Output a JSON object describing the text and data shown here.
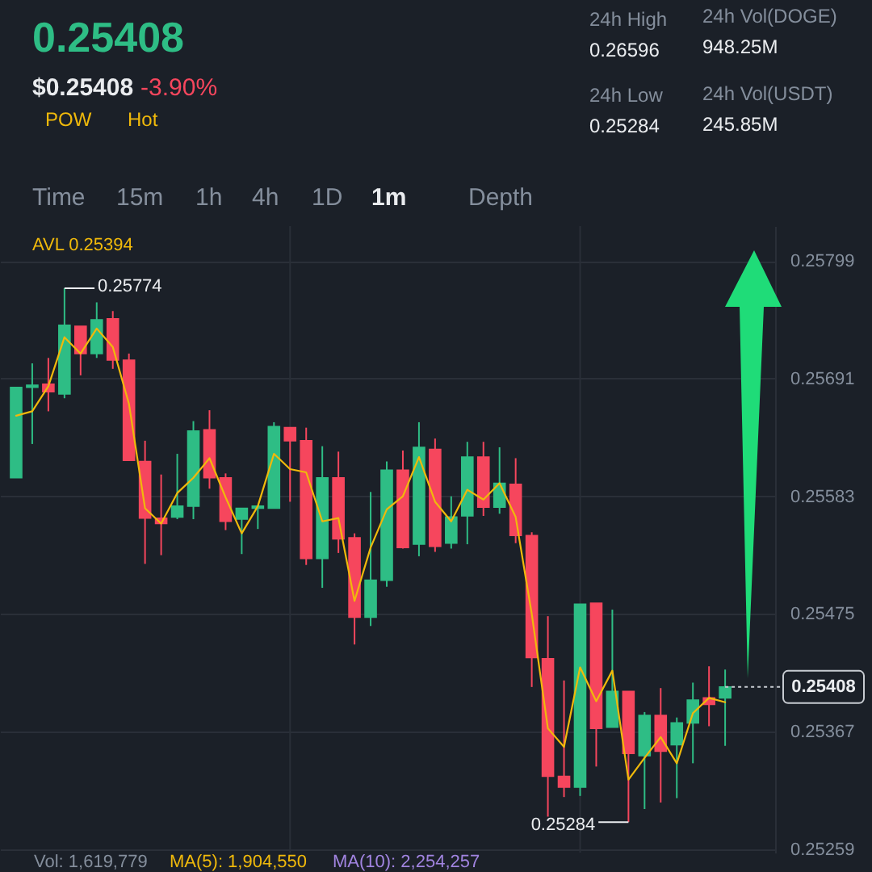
{
  "chart_data": {
    "type": "candlestick",
    "title": "0.25408",
    "categories": [
      null,
      null,
      null,
      null,
      null,
      null,
      null,
      null,
      null,
      null,
      null,
      null,
      null,
      null,
      null,
      null,
      null,
      null,
      null,
      null,
      null,
      null,
      null,
      null,
      null,
      null,
      null,
      null,
      null,
      null,
      null,
      null,
      null,
      null,
      null,
      null,
      null,
      null,
      null,
      null,
      null,
      null,
      null,
      null,
      null
    ],
    "ohlc": [
      [
        0.256,
        0.25683,
        0.256,
        0.25683
      ],
      [
        0.25683,
        0.25705,
        0.25631,
        0.25685
      ],
      [
        0.25686,
        0.2571,
        0.25661,
        0.25679
      ],
      [
        0.25677,
        0.25774,
        0.25673,
        0.2574
      ],
      [
        0.25739,
        0.25739,
        0.25694,
        0.25714
      ],
      [
        0.25714,
        0.25761,
        0.2571,
        0.25745
      ],
      [
        0.25746,
        0.25753,
        0.257,
        0.25708
      ],
      [
        0.25708,
        0.25714,
        0.25616,
        0.25616
      ],
      [
        0.25615,
        0.25634,
        0.25521,
        0.25563
      ],
      [
        0.25563,
        0.25603,
        0.25529,
        0.25558
      ],
      [
        0.25564,
        0.25622,
        0.25562,
        0.25574
      ],
      [
        0.25574,
        0.25652,
        0.25562,
        0.25643
      ],
      [
        0.25644,
        0.25662,
        0.2559,
        0.256
      ],
      [
        0.256,
        0.25604,
        0.25552,
        0.2556
      ],
      [
        0.25562,
        0.25572,
        0.2553,
        0.25572
      ],
      [
        0.25572,
        0.25574,
        0.25553,
        0.25574
      ],
      [
        0.25572,
        0.25651,
        0.25572,
        0.25647
      ],
      [
        0.25646,
        0.25646,
        0.25578,
        0.25634
      ],
      [
        0.25634,
        0.25646,
        0.2552,
        0.25526
      ],
      [
        0.25526,
        0.25629,
        0.25499,
        0.256
      ],
      [
        0.256,
        0.25624,
        0.25531,
        0.25544
      ],
      [
        0.25545,
        0.25549,
        0.25447,
        0.25472
      ],
      [
        0.25472,
        0.25587,
        0.25464,
        0.25506
      ],
      [
        0.25506,
        0.25615,
        0.255,
        0.25607
      ],
      [
        0.25607,
        0.25625,
        0.25535,
        0.25536
      ],
      [
        0.25539,
        0.25651,
        0.25528,
        0.25628
      ],
      [
        0.25626,
        0.25636,
        0.25532,
        0.25537
      ],
      [
        0.2554,
        0.25583,
        0.25535,
        0.25564
      ],
      [
        0.25565,
        0.25633,
        0.25539,
        0.25619
      ],
      [
        0.25619,
        0.25633,
        0.25565,
        0.25573
      ],
      [
        0.25573,
        0.25628,
        0.25567,
        0.25595
      ],
      [
        0.25594,
        0.25618,
        0.2554,
        0.25547
      ],
      [
        0.25547,
        0.2555,
        0.25408,
        0.25435
      ],
      [
        0.25434,
        0.25473,
        0.25289,
        0.25326
      ],
      [
        0.25326,
        0.25414,
        0.25307,
        0.25316
      ],
      [
        0.25316,
        0.25484,
        0.25308,
        0.25484
      ],
      [
        0.25485,
        0.25485,
        0.25335,
        0.2537
      ],
      [
        0.25371,
        0.25479,
        0.25371,
        0.25404
      ],
      [
        0.25404,
        0.25404,
        0.25284,
        0.25347
      ],
      [
        0.25345,
        0.25385,
        0.25296,
        0.25382
      ],
      [
        0.25382,
        0.25407,
        0.25302,
        0.25349
      ],
      [
        0.25355,
        0.2538,
        0.25306,
        0.25375
      ],
      [
        0.25375,
        0.25412,
        0.25338,
        0.25396
      ],
      [
        0.25398,
        0.25427,
        0.25372,
        0.25392
      ],
      [
        0.25398,
        0.25424,
        0.25354,
        0.25408
      ]
    ],
    "colors": [
      "#2ebd85",
      "#2ebd85",
      "#f6465d",
      "#2ebd85",
      "#f6465d",
      "#2ebd85",
      "#f6465d",
      "#f6465d",
      "#f6465d",
      "#f6465d",
      "#2ebd85",
      "#2ebd85",
      "#f6465d",
      "#f6465d",
      "#2ebd85",
      "#2ebd85",
      "#2ebd85",
      "#f6465d",
      "#f6465d",
      "#2ebd85",
      "#f6465d",
      "#f6465d",
      "#2ebd85",
      "#2ebd85",
      "#f6465d",
      "#2ebd85",
      "#f6465d",
      "#2ebd85",
      "#2ebd85",
      "#f6465d",
      "#2ebd85",
      "#f6465d",
      "#f6465d",
      "#f6465d",
      "#f6465d",
      "#2ebd85",
      "#f6465d",
      "#2ebd85",
      "#f6465d",
      "#2ebd85",
      "#f6465d",
      "#2ebd85",
      "#2ebd85",
      "#f6465d",
      "#2ebd85"
    ],
    "series": [
      {
        "type": "line",
        "name": "AVL 0.25394",
        "color": "#f0b90b",
        "values": [
          0.25657,
          0.25661,
          0.25684,
          0.25729,
          0.25714,
          0.25737,
          0.2572,
          0.25668,
          0.25572,
          0.25558,
          0.25586,
          0.256,
          0.25618,
          0.25582,
          0.25549,
          0.25574,
          0.25622,
          0.25608,
          0.25605,
          0.2556,
          0.25563,
          0.25487,
          0.25536,
          0.25571,
          0.25583,
          0.25619,
          0.25578,
          0.2556,
          0.25589,
          0.2558,
          0.25595,
          0.25564,
          0.25475,
          0.2537,
          0.25353,
          0.25426,
          0.25395,
          0.25423,
          0.25323,
          0.25343,
          0.25362,
          0.25338,
          0.25384,
          0.25398,
          0.25394
        ]
      }
    ],
    "ylim": [
      0.25256,
      0.25831
    ],
    "yticks": [
      0.25259,
      0.25367,
      0.25475,
      0.25583,
      0.25691,
      0.25799
    ],
    "grid": true,
    "ref_lines": [
      {
        "axis": "y",
        "value": 0.25408,
        "label": "0.25408",
        "line_style": "dotted",
        "color": "#c7cbd1"
      }
    ],
    "annotations": [
      "$0.25408",
      "-3.90%",
      "POW",
      "Hot",
      "24h High",
      "0.26596",
      "24h Low",
      "0.25284",
      "24h Vol(DOGE)",
      "948.25M",
      "24h Vol(USDT)",
      "245.85M",
      "Time",
      "15m",
      "1h",
      "4h",
      "1D",
      "1m",
      "Depth",
      "0.25774",
      "0.25284",
      "Vol: 1,619,779",
      "MA(5): 1,904,550",
      "MA(10): 2,254,257"
    ]
  }
}
